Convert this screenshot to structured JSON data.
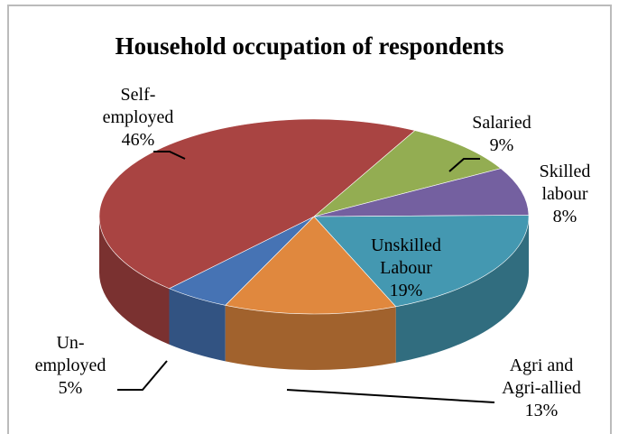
{
  "chart_data": {
    "type": "pie",
    "title": "Household occupation of respondents",
    "categories": [
      "Salaried",
      "Skilled labour",
      "Unskilled Labour",
      "Agri and Agri-allied",
      "Un-employed",
      "Self-employed"
    ],
    "values": [
      9,
      8,
      19,
      13,
      5,
      46
    ],
    "value_labels": [
      "9%",
      "8%",
      "19%",
      "13%",
      "5%",
      "46%"
    ],
    "colors": [
      "#93ad52",
      "#7460a0",
      "#4498b1",
      "#e0883e",
      "#4673b4",
      "#a94442"
    ]
  }
}
